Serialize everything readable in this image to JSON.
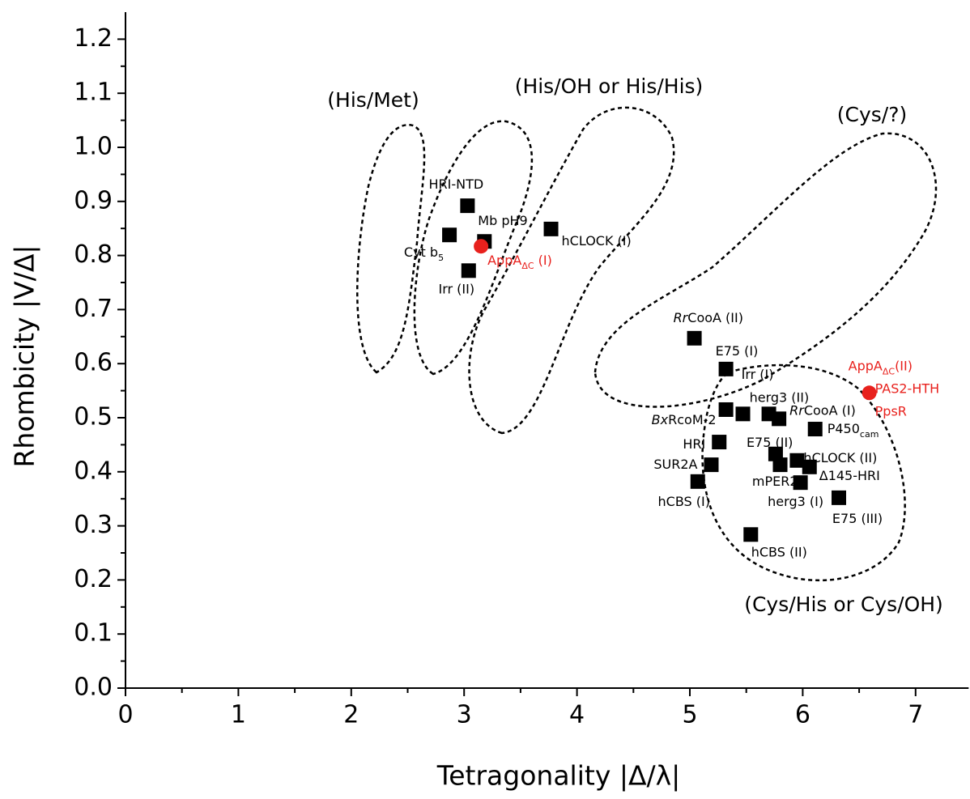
{
  "chart_data": {
    "type": "scatter",
    "xlabel": "Tetragonality |Δ/λ|",
    "ylabel": "Rhombicity |V/Δ|",
    "xlim": [
      0,
      7.47
    ],
    "ylim": [
      0,
      1.25
    ],
    "xticks": [
      0,
      1,
      2,
      3,
      4,
      5,
      6,
      7
    ],
    "minor_xticks": [
      0.5,
      1.5,
      2.5,
      3.5,
      4.5,
      5.5,
      6.5
    ],
    "yticks": [
      {
        "value": 0,
        "label": "0.0"
      },
      {
        "value": 0.1,
        "label": "0.1"
      },
      {
        "value": 0.2,
        "label": "0.2"
      },
      {
        "value": 0.3,
        "label": "0.3"
      },
      {
        "value": 0.4,
        "label": "0.4"
      },
      {
        "value": 0.5,
        "label": "0.5"
      },
      {
        "value": 0.6,
        "label": "0.6"
      },
      {
        "value": 0.7,
        "label": "0.7"
      },
      {
        "value": 0.8,
        "label": "0.8"
      },
      {
        "value": 0.9,
        "label": "0.9"
      },
      {
        "value": 1.0,
        "label": "1.0"
      },
      {
        "value": 1.1,
        "label": "1.1"
      },
      {
        "value": 1.2,
        "label": "1.2"
      }
    ],
    "minor_yticks": [
      0.05,
      0.15,
      0.25,
      0.35,
      0.45,
      0.55,
      0.65,
      0.75,
      0.85,
      0.95,
      1.05,
      1.15
    ],
    "region_labels": [
      "(His/Met)",
      "(His/OH or His/His)",
      "(Cys/?)",
      "(Cys/His or Cys/OH)"
    ],
    "series": [
      {
        "color": "#000000",
        "marker": "square",
        "x": [
          3.03,
          2.87,
          3.18,
          3.77,
          3.04,
          5.04,
          5.32,
          5.32,
          5.47,
          5.7,
          5.79,
          6.11,
          5.26,
          5.76,
          5.95,
          5.8,
          6.06,
          5.19,
          5.07,
          5.98,
          6.32,
          5.54
        ],
        "values": [
          0.892,
          0.838,
          0.826,
          0.849,
          0.772,
          0.647,
          0.59,
          0.515,
          0.507,
          0.507,
          0.498,
          0.479,
          0.455,
          0.433,
          0.421,
          0.413,
          0.409,
          0.413,
          0.382,
          0.38,
          0.352,
          0.284
        ],
        "labels": [
          [
            [
              {
                "text": "HRI-NTD"
              }
            ]
          ],
          [
            [
              {
                "text": "Cyt b"
              },
              {
                "text": "5",
                "sub": true
              }
            ]
          ],
          [
            [
              {
                "text": "Mb pH9"
              }
            ]
          ],
          [
            [
              {
                "text": "hCLOCK (I)"
              }
            ]
          ],
          [
            [
              {
                "text": "Irr (II)"
              }
            ]
          ],
          [
            [
              {
                "text": "Rr",
                "italic": true
              },
              {
                "text": "CooA (II)"
              }
            ]
          ],
          [
            [
              {
                "text": "E75 (I)"
              }
            ],
            [
              {
                "text": "Irr (I)"
              }
            ]
          ],
          [
            [
              {
                "text": "Bx",
                "italic": true
              },
              {
                "text": "RcoM-2"
              }
            ]
          ],
          [],
          [
            [
              {
                "text": "herg3 (II)"
              }
            ]
          ],
          [
            [
              {
                "text": "Rr",
                "italic": true
              },
              {
                "text": "CooA (I)"
              }
            ]
          ],
          [
            [
              {
                "text": "P450"
              },
              {
                "text": "cam",
                "sub": true
              }
            ]
          ],
          [
            [
              {
                "text": "HRI"
              }
            ]
          ],
          [
            [
              {
                "text": "E75 (II)"
              }
            ]
          ],
          [
            [
              {
                "text": "hCLOCK (II)"
              }
            ]
          ],
          [
            [
              {
                "text": "mPER2"
              }
            ]
          ],
          [
            [
              {
                "text": "Δ145-HRI"
              }
            ]
          ],
          [
            [
              {
                "text": "SUR2A"
              }
            ]
          ],
          [
            [
              {
                "text": "hCBS (I)"
              }
            ]
          ],
          [
            [
              {
                "text": "herg3 (I)"
              }
            ]
          ],
          [
            [
              {
                "text": "E75 (III)"
              }
            ]
          ],
          [
            [
              {
                "text": "hCBS (II)"
              }
            ]
          ]
        ]
      },
      {
        "color": "#e8211d",
        "marker": "circle",
        "x": [
          3.15,
          6.59
        ],
        "values": [
          0.817,
          0.546
        ],
        "labels": [
          [
            [
              {
                "text": "AppA"
              },
              {
                "text": "ΔC",
                "sub": true
              },
              {
                "text": " (I)"
              }
            ]
          ],
          [
            [
              {
                "text": "AppA"
              },
              {
                "text": "ΔC",
                "sub": true
              },
              {
                "text": "(II)"
              }
            ],
            [
              {
                "text": "PAS2-HTH"
              }
            ],
            [
              {
                "text": "PpsR"
              }
            ]
          ]
        ]
      }
    ]
  }
}
